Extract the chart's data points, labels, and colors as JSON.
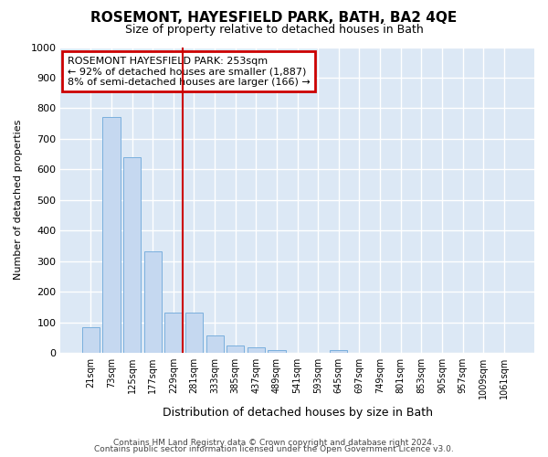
{
  "title": "ROSEMONT, HAYESFIELD PARK, BATH, BA2 4QE",
  "subtitle": "Size of property relative to detached houses in Bath",
  "xlabel": "Distribution of detached houses by size in Bath",
  "ylabel": "Number of detached properties",
  "bins": [
    "21sqm",
    "73sqm",
    "125sqm",
    "177sqm",
    "229sqm",
    "281sqm",
    "333sqm",
    "385sqm",
    "437sqm",
    "489sqm",
    "541sqm",
    "593sqm",
    "645sqm",
    "697sqm",
    "749sqm",
    "801sqm",
    "853sqm",
    "905sqm",
    "957sqm",
    "1009sqm",
    "1061sqm"
  ],
  "values": [
    85,
    770,
    640,
    333,
    133,
    133,
    58,
    25,
    18,
    10,
    0,
    0,
    10,
    0,
    0,
    0,
    0,
    0,
    0,
    0,
    0
  ],
  "bar_color": "#c5d8f0",
  "bar_edge_color": "#7aafdd",
  "vline_color": "#cc0000",
  "annotation_title": "ROSEMONT HAYESFIELD PARK: 253sqm",
  "annotation_line1": "← 92% of detached houses are smaller (1,887)",
  "annotation_line2": "8% of semi-detached houses are larger (166) →",
  "annotation_box_color": "#cc0000",
  "ylim": [
    0,
    1000
  ],
  "background_color": "#dce8f5",
  "grid_color": "#ffffff",
  "fig_background": "#ffffff",
  "footer1": "Contains HM Land Registry data © Crown copyright and database right 2024.",
  "footer2": "Contains public sector information licensed under the Open Government Licence v3.0."
}
